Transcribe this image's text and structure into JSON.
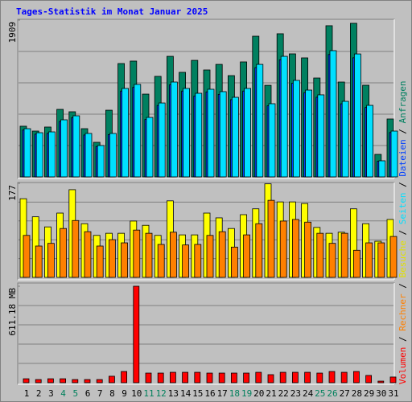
{
  "chart_data": [
    {
      "type": "bar",
      "title": "Tages-Statistik im Monat Januar 2025",
      "ylim": [
        0,
        1909
      ],
      "yticks": [
        1909
      ],
      "grid": true,
      "series": [
        {
          "name": "Anfragen",
          "color": "#008060",
          "values": [
            617,
            558,
            607,
            822,
            793,
            587,
            421,
            812,
            1380,
            1410,
            1008,
            1224,
            1468,
            1273,
            1419,
            1302,
            1370,
            1233,
            1400,
            1713,
            1115,
            1743,
            1498,
            1449,
            1204,
            1841,
            1155,
            1870,
            1116,
            274,
            705
          ]
        },
        {
          "name": "Dateien",
          "color": "#0040ff",
          "values": [
            570,
            520,
            530,
            675,
            720,
            510,
            370,
            515,
            1045,
            1090,
            700,
            870,
            1120,
            1045,
            985,
            1035,
            1005,
            940,
            1045,
            1330,
            865,
            1425,
            1140,
            1025,
            970,
            1490,
            890,
            1450,
            845,
            190,
            540
          ]
        },
        {
          "name": "Seiten",
          "color": "#00e0ff",
          "values": [
            587,
            538,
            548,
            695,
            744,
            529,
            382,
            529,
            1077,
            1126,
            724,
            900,
            1155,
            1077,
            1018,
            1067,
            1038,
            969,
            1077,
            1370,
            891,
            1468,
            1175,
            1057,
            999,
            1537,
            920,
            1497,
            871,
            196,
            558
          ]
        }
      ]
    },
    {
      "type": "bar",
      "ylim": [
        0,
        177
      ],
      "yticks": [
        177
      ],
      "grid": true,
      "series": [
        {
          "name": "Besuche",
          "color": "#ffff00",
          "values": [
            148,
            114,
            95,
            121,
            165,
            101,
            79,
            83,
            83,
            106,
            98,
            79,
            144,
            80,
            80,
            121,
            112,
            92,
            118,
            129,
            176,
            142,
            142,
            139,
            94,
            83,
            85,
            129,
            101,
            68,
            109
          ]
        },
        {
          "name": "Rechner",
          "color": "#ff8000",
          "values": [
            79,
            59,
            64,
            92,
            107,
            86,
            59,
            71,
            65,
            89,
            83,
            62,
            85,
            61,
            62,
            79,
            86,
            57,
            80,
            101,
            145,
            106,
            109,
            104,
            83,
            64,
            83,
            51,
            65,
            65,
            77
          ]
        }
      ]
    },
    {
      "type": "bar",
      "ylim": [
        0,
        611.18
      ],
      "yticks": [
        {
          "value": 611.18,
          "label": "611.18 MB"
        }
      ],
      "grid": true,
      "categories": [
        "1",
        "2",
        "3",
        "4",
        "5",
        "6",
        "7",
        "8",
        "9",
        "10",
        "11",
        "12",
        "13",
        "14",
        "15",
        "16",
        "17",
        "18",
        "19",
        "20",
        "21",
        "22",
        "23",
        "24",
        "25",
        "26",
        "27",
        "28",
        "29",
        "30",
        "31"
      ],
      "category_colors": [
        "#000000",
        "#000000",
        "#000000",
        "#00805c",
        "#00805c",
        "#000000",
        "#000000",
        "#000000",
        "#000000",
        "#000000",
        "#00805c",
        "#00805c",
        "#000000",
        "#000000",
        "#000000",
        "#000000",
        "#000000",
        "#00805c",
        "#00805c",
        "#000000",
        "#000000",
        "#000000",
        "#000000",
        "#000000",
        "#00805c",
        "#00805c",
        "#000000",
        "#000000",
        "#000000",
        "#000000",
        "#000000"
      ],
      "series": [
        {
          "name": "Volumen",
          "color": "#ff0000",
          "values": [
            25,
            20,
            25,
            25,
            20,
            20,
            20,
            41,
            71,
            611.18,
            61,
            61,
            66,
            66,
            66,
            61,
            61,
            61,
            61,
            66,
            51,
            66,
            66,
            66,
            61,
            71,
            66,
            71,
            46,
            10,
            36
          ]
        }
      ]
    },
    {
      "legend_separator": " / "
    }
  ]
}
